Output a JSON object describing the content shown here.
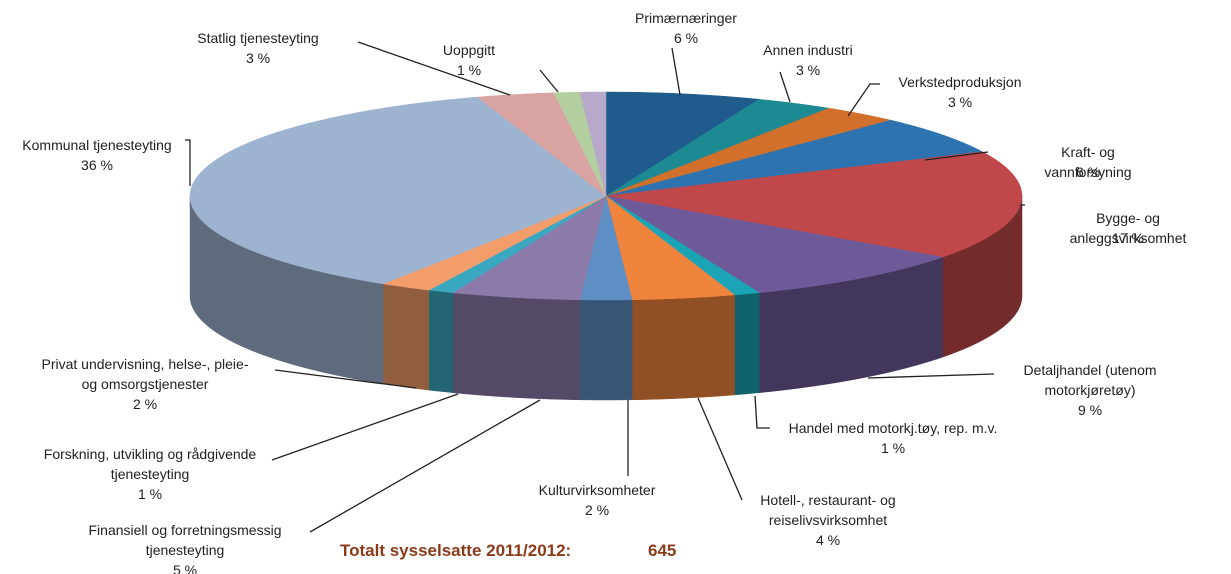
{
  "chart_data": {
    "type": "pie3d",
    "categories": [
      "Primærnæringer",
      "Annen industri",
      "Verkstedproduksjon",
      "Kraft- og vannforsyning",
      "Bygge- og anleggsvirksomhet",
      "Detaljhandel (utenom\nmotorkjøretøy)",
      "Handel med motorkj.tøy, rep. m.v.",
      "Hotell-,  restaurant- og\nreiselivsvirksomhet",
      "Kulturvirksomheter",
      "Finansiell og forretningsmessig\ntjenesteyting",
      "Forskning, utvikling og rådgivende\ntjenesteyting",
      "Privat undervisning, helse-, pleie-\nog omsorgstjenester",
      "Kommunal tjenesteyting",
      "Statlig tjenesteyting",
      "Uoppgitt",
      null
    ],
    "values": [
      6,
      3,
      3,
      6,
      17,
      9,
      1,
      4,
      2,
      5,
      1,
      2,
      36,
      3,
      1,
      1
    ],
    "value_labels": [
      "6 %",
      "3 %",
      "3 %",
      "6 %",
      "17 %",
      "9 %",
      "1 %",
      "4 %",
      "2 %",
      "5 %",
      "1 %",
      "2 %",
      "36 %",
      "3 %",
      "1 %",
      null
    ],
    "colors": [
      "#1f5b8c",
      "#1d8a93",
      "#d0702a",
      "#2d73b0",
      "#c0474a",
      "#6e5a99",
      "#1aa4b6",
      "#f0843c",
      "#5d8ec4",
      "#8c7aab",
      "#3aa8c0",
      "#f39d6a",
      "#9db3cf",
      "#d9a3a2",
      "#b3cfa0",
      "#b8a8c9"
    ],
    "total_text": "Totalt sysselsatte 2011/2012:",
    "total_value": 645
  }
}
